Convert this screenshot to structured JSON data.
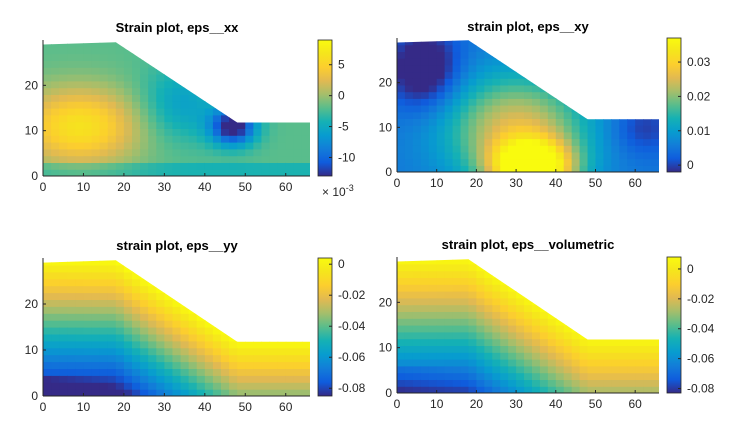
{
  "chart_data": [
    {
      "type": "heatmap",
      "title": "Strain plot, eps__xx",
      "xlim": [
        0,
        66
      ],
      "ylim": [
        0,
        30
      ],
      "xticks": [
        "0",
        "10",
        "20",
        "30",
        "40",
        "50",
        "60"
      ],
      "yticks": [
        "0",
        "10",
        "20"
      ],
      "clim": [
        -0.013,
        0.009
      ],
      "colorbar_ticks": [
        {
          "value": 0.005,
          "label": "5"
        },
        {
          "value": 0,
          "label": "0"
        },
        {
          "value": -0.005,
          "label": "-5"
        },
        {
          "value": -0.01,
          "label": "-10"
        }
      ],
      "colorbar_exponent": "× 10",
      "colorbar_exponent_power": "-3",
      "colormap": "parula",
      "domain": {
        "polygon": [
          [
            0,
            0
          ],
          [
            66,
            0
          ],
          [
            66,
            11.8
          ],
          [
            48,
            11.8
          ],
          [
            18,
            29.5
          ],
          [
            0,
            29
          ]
        ]
      },
      "field": "xx"
    },
    {
      "type": "heatmap",
      "title": "strain plot, eps__xy",
      "xlim": [
        0,
        66
      ],
      "ylim": [
        0,
        30
      ],
      "xticks": [
        "0",
        "10",
        "20",
        "30",
        "40",
        "50",
        "60"
      ],
      "yticks": [
        "0",
        "10",
        "20"
      ],
      "clim": [
        -0.002,
        0.037
      ],
      "colorbar_ticks": [
        {
          "value": 0.03,
          "label": "0.03"
        },
        {
          "value": 0.02,
          "label": "0.02"
        },
        {
          "value": 0.01,
          "label": "0.01"
        },
        {
          "value": 0,
          "label": "0"
        }
      ],
      "colormap": "parula",
      "domain": {
        "polygon": [
          [
            0,
            0
          ],
          [
            66,
            0
          ],
          [
            66,
            11.8
          ],
          [
            48,
            11.8
          ],
          [
            18,
            29.5
          ],
          [
            0,
            29
          ]
        ]
      },
      "field": "xy"
    },
    {
      "type": "heatmap",
      "title": "strain plot, eps__yy",
      "xlim": [
        0,
        66
      ],
      "ylim": [
        0,
        30
      ],
      "xticks": [
        "0",
        "10",
        "20",
        "30",
        "40",
        "50",
        "60"
      ],
      "yticks": [
        "0",
        "10",
        "20"
      ],
      "clim": [
        -0.085,
        0.004
      ],
      "colorbar_ticks": [
        {
          "value": 0,
          "label": "0"
        },
        {
          "value": -0.02,
          "label": "-0.02"
        },
        {
          "value": -0.04,
          "label": "-0.04"
        },
        {
          "value": -0.06,
          "label": "-0.06"
        },
        {
          "value": -0.08,
          "label": "-0.08"
        }
      ],
      "colormap": "parula",
      "domain": {
        "polygon": [
          [
            0,
            0
          ],
          [
            66,
            0
          ],
          [
            66,
            11.8
          ],
          [
            48,
            11.8
          ],
          [
            18,
            29.5
          ],
          [
            0,
            29
          ]
        ]
      },
      "field": "yy"
    },
    {
      "type": "heatmap",
      "title": "strain plot, eps__volumetric",
      "xlim": [
        0,
        66
      ],
      "ylim": [
        0,
        30
      ],
      "xticks": [
        "0",
        "10",
        "20",
        "30",
        "40",
        "50",
        "60"
      ],
      "yticks": [
        "0",
        "10",
        "20"
      ],
      "clim": [
        -0.083,
        0.008
      ],
      "colorbar_ticks": [
        {
          "value": 0,
          "label": "0"
        },
        {
          "value": -0.02,
          "label": "-0.02"
        },
        {
          "value": -0.04,
          "label": "-0.04"
        },
        {
          "value": -0.06,
          "label": "-0.06"
        },
        {
          "value": -0.08,
          "label": "-0.08"
        }
      ],
      "colormap": "parula",
      "domain": {
        "polygon": [
          [
            0,
            0
          ],
          [
            66,
            0
          ],
          [
            66,
            11.8
          ],
          [
            48,
            11.8
          ],
          [
            18,
            29.5
          ],
          [
            0,
            29
          ]
        ]
      },
      "field": "vol"
    }
  ]
}
